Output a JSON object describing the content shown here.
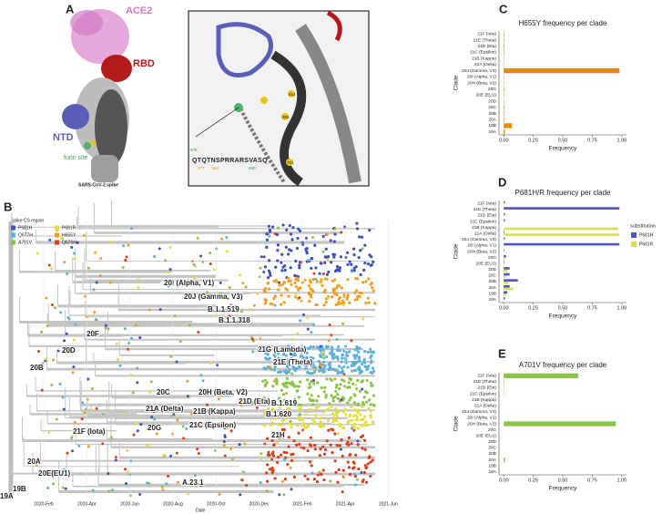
{
  "panel_labels": [
    "A",
    "B",
    "C",
    "D",
    "E"
  ],
  "structure": {
    "ace2": "ACE2",
    "rbd": "RBD",
    "ntd": "NTD",
    "furin": "furin site",
    "caption": "SARS-CoV-2 spike",
    "sequence": "QTQTNSPRRARSVASQ",
    "positions": [
      "675",
      "677",
      "681",
      "690"
    ],
    "sites": [
      "614",
      "655",
      "701"
    ]
  },
  "tree": {
    "legend_title": "Spike CS region",
    "legend": [
      {
        "name": "P681H",
        "color": "#3f51b5"
      },
      {
        "name": "P681R",
        "color": "#e3de3e"
      },
      {
        "name": "Q677H",
        "color": "#5fb0d8"
      },
      {
        "name": "H655Y",
        "color": "#f0a020"
      },
      {
        "name": "A701V",
        "color": "#8bc34a"
      },
      {
        "name": "Q675H",
        "color": "#d6401c"
      }
    ],
    "clades": [
      "20I (Alpha, V1)",
      "20J (Gamma, V3)",
      "B.1.1.519",
      "B.1.1.318",
      "20F",
      "20D",
      "21G (Lambda)",
      "21E (Theta)",
      "20B",
      "20C",
      "20H (Beta, V2)",
      "21D (Eta)",
      "B.1.619",
      "21A (Delta)",
      "21B (Kappa)",
      "B.1.620",
      "20G",
      "21C (Epsilon)",
      "21F (Iota)",
      "21H",
      "20A",
      "20E(EU1)",
      "A.23.1",
      "19B",
      "19A"
    ],
    "date_ticks": [
      "2020-Feb",
      "2020-Apr",
      "2020-Jun",
      "2020-Aug",
      "2020-Oct",
      "2020-Dec",
      "2021-Feb",
      "2021-Apr",
      "2021-Jun"
    ],
    "xlabel": "Date"
  },
  "chart_data": [
    {
      "type": "bar",
      "orientation": "horizontal",
      "title": "H655Y frequency per clade",
      "xlabel": "Frequency",
      "ylabel": "Clade",
      "categories": [
        "21F (Iota)",
        "21E (Theta)",
        "21D (Eta)",
        "21C (Epsilon)",
        "21B (Kappa)",
        "21A (Delta)",
        "20J (Gamma, V3)",
        "20I (Alpha, V1)",
        "20H (Beta, V2)",
        "20G",
        "20E (EU1)",
        "20D",
        "20C",
        "20B",
        "20A",
        "19B",
        "19A"
      ],
      "series": [
        {
          "name": "H655Y",
          "color": "#e8890c",
          "values": [
            0.005,
            0.005,
            0.005,
            0.005,
            0.003,
            0.003,
            0.98,
            0.003,
            0.003,
            0.005,
            0.003,
            0.003,
            0.005,
            0.005,
            0.005,
            0.07,
            0.01
          ]
        }
      ],
      "xlim": [
        -0.04,
        1.04
      ],
      "xticks": [
        {
          "value": 0,
          "label": "0.00"
        },
        {
          "value": 0.25,
          "label": "0.25"
        },
        {
          "value": 0.5,
          "label": "0.50"
        },
        {
          "value": 0.75,
          "label": "0.75"
        },
        {
          "value": 1,
          "label": "1.00"
        }
      ]
    },
    {
      "type": "bar",
      "orientation": "horizontal",
      "title": "P681H/R frequency per clade",
      "xlabel": "Frequency",
      "ylabel": "Clade",
      "legend_title": "substitution",
      "categories": [
        "21F (Iota)",
        "21E (Theta)",
        "21D (Eta)",
        "21C (Epsilon)",
        "21B (Kappa)",
        "21A (Delta)",
        "20J (Gamma, V3)",
        "20I (Alpha, V1)",
        "20H (Beta, V2)",
        "20G",
        "20E (EU1)",
        "20D",
        "20C",
        "20B",
        "20A",
        "19B",
        "19A"
      ],
      "series": [
        {
          "name": "P681H",
          "color": "#4b55c3",
          "values": [
            0.01,
            0.98,
            0.01,
            0.01,
            0,
            0.005,
            0.01,
            0.98,
            0.005,
            0.02,
            0.005,
            0.05,
            0.05,
            0.12,
            0.05,
            0.03,
            0.01
          ]
        },
        {
          "name": "P681R",
          "color": "#d4e157",
          "values": [
            0,
            0,
            0,
            0,
            0.97,
            0.98,
            0,
            0,
            0,
            0.005,
            0,
            0.03,
            0.02,
            0.04,
            0.08,
            0.02,
            0
          ]
        }
      ],
      "xlim": [
        -0.04,
        1.04
      ],
      "xticks": [
        {
          "value": 0,
          "label": "0.00"
        },
        {
          "value": 0.25,
          "label": "0.25"
        },
        {
          "value": 0.5,
          "label": "0.50"
        },
        {
          "value": 0.75,
          "label": "0.75"
        },
        {
          "value": 1,
          "label": "1.00"
        }
      ]
    },
    {
      "type": "bar",
      "orientation": "horizontal",
      "title": "A701V frequency per clade",
      "xlabel": "Frequency",
      "ylabel": "Clade",
      "categories": [
        "21F (Iota)",
        "21E (Theta)",
        "21D (Eta)",
        "21C (Epsilon)",
        "21B (Kappa)",
        "21A (Delta)",
        "20J (Gamma, V3)",
        "20I (Alpha, V1)",
        "20H (Beta, V2)",
        "20G",
        "20E (EU1)",
        "20D",
        "20C",
        "20B",
        "20A",
        "19B",
        "19A"
      ],
      "series": [
        {
          "name": "A701V",
          "color": "#8bc34a",
          "values": [
            0.63,
            0.005,
            0.003,
            0.003,
            0,
            0,
            0,
            0,
            0.95,
            0,
            0,
            0,
            0,
            0,
            0.01,
            0,
            0
          ]
        }
      ],
      "xlim": [
        -0.04,
        1.04
      ],
      "xticks": [
        {
          "value": 0,
          "label": "0.00"
        },
        {
          "value": 0.25,
          "label": "0.25"
        },
        {
          "value": 0.5,
          "label": "0.50"
        },
        {
          "value": 0.75,
          "label": "0.75"
        },
        {
          "value": 1,
          "label": "1.00"
        }
      ]
    }
  ]
}
